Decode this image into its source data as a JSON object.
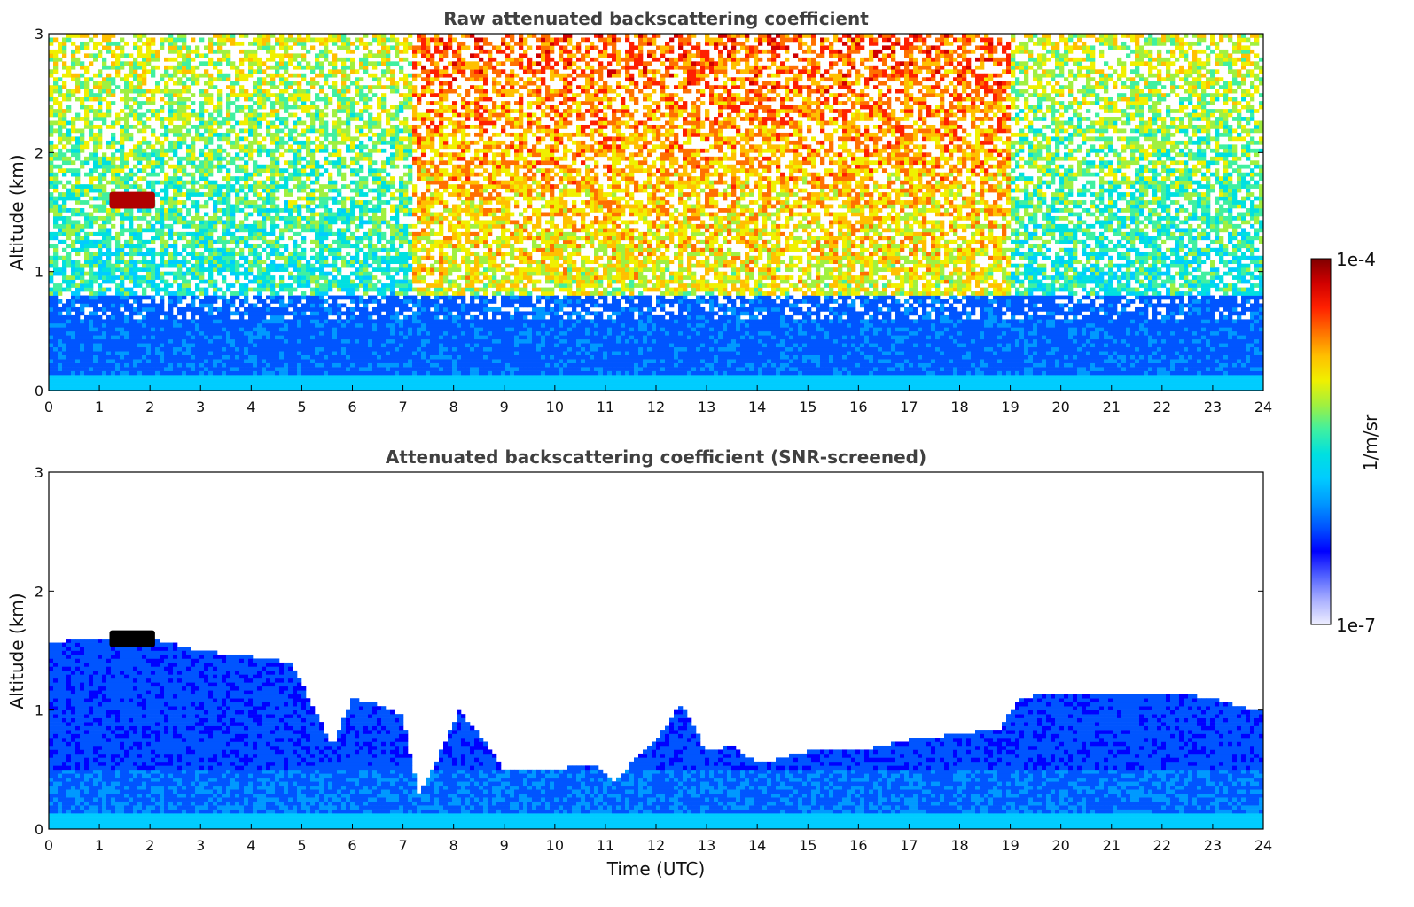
{
  "chart_data": [
    {
      "type": "heatmap",
      "title": "Raw attenuated backscattering coefficient",
      "xlabel": "",
      "ylabel": "Altitude (km)",
      "xlim": [
        0,
        24
      ],
      "ylim": [
        0,
        3
      ],
      "xticks": [
        "0",
        "1",
        "2",
        "3",
        "4",
        "5",
        "6",
        "7",
        "8",
        "9",
        "10",
        "11",
        "12",
        "13",
        "14",
        "15",
        "16",
        "17",
        "18",
        "19",
        "20",
        "21",
        "22",
        "23",
        "24"
      ],
      "yticks": [
        "0",
        "1",
        "2",
        "3"
      ],
      "screened": false,
      "cloud": {
        "x_start": 1.2,
        "x_end": 2.1,
        "altitude": 1.6
      }
    },
    {
      "type": "heatmap",
      "title": "Attenuated backscattering coefficient (SNR-screened)",
      "xlabel": "Time (UTC)",
      "ylabel": "Altitude (km)",
      "xlim": [
        0,
        24
      ],
      "ylim": [
        0,
        3
      ],
      "xticks": [
        "0",
        "1",
        "2",
        "3",
        "4",
        "5",
        "6",
        "7",
        "8",
        "9",
        "10",
        "11",
        "12",
        "13",
        "14",
        "15",
        "16",
        "17",
        "18",
        "19",
        "20",
        "21",
        "22",
        "23",
        "24"
      ],
      "yticks": [
        "0",
        "1",
        "2",
        "3"
      ],
      "screened": true,
      "cloud": {
        "x_start": 1.2,
        "x_end": 2.1,
        "altitude": 1.6
      },
      "boundary_layer_top_km": [
        [
          0.0,
          1.55
        ],
        [
          0.5,
          1.6
        ],
        [
          1.0,
          1.6
        ],
        [
          2.0,
          1.6
        ],
        [
          3.0,
          1.5
        ],
        [
          4.0,
          1.45
        ],
        [
          4.8,
          1.4
        ],
        [
          5.2,
          1.05
        ],
        [
          5.6,
          0.7
        ],
        [
          6.0,
          1.1
        ],
        [
          6.5,
          1.05
        ],
        [
          7.0,
          0.95
        ],
        [
          7.3,
          0.3
        ],
        [
          7.7,
          0.6
        ],
        [
          8.1,
          1.0
        ],
        [
          8.6,
          0.75
        ],
        [
          9.0,
          0.5
        ],
        [
          10.0,
          0.5
        ],
        [
          10.8,
          0.55
        ],
        [
          11.2,
          0.4
        ],
        [
          11.6,
          0.6
        ],
        [
          12.0,
          0.75
        ],
        [
          12.5,
          1.05
        ],
        [
          13.0,
          0.65
        ],
        [
          13.5,
          0.7
        ],
        [
          14.0,
          0.55
        ],
        [
          15.0,
          0.65
        ],
        [
          16.0,
          0.65
        ],
        [
          17.0,
          0.75
        ],
        [
          18.0,
          0.8
        ],
        [
          18.8,
          0.85
        ],
        [
          19.2,
          1.1
        ],
        [
          20.0,
          1.15
        ],
        [
          21.0,
          1.15
        ],
        [
          22.0,
          1.15
        ],
        [
          23.0,
          1.1
        ],
        [
          23.8,
          1.0
        ]
      ]
    }
  ],
  "colorbar": {
    "label": "1/m/sr",
    "max_label": "1e-4",
    "min_label": "1e-7",
    "scale": "log",
    "colormap": "jet",
    "colors": [
      "#eeeeff",
      "#aab0ff",
      "#5060ff",
      "#0000ff",
      "#0055ff",
      "#0099ff",
      "#00ccff",
      "#00e0e0",
      "#40f0a0",
      "#a0f040",
      "#f0f000",
      "#ffc000",
      "#ff7000",
      "#ff2000",
      "#d00000",
      "#800000"
    ]
  }
}
